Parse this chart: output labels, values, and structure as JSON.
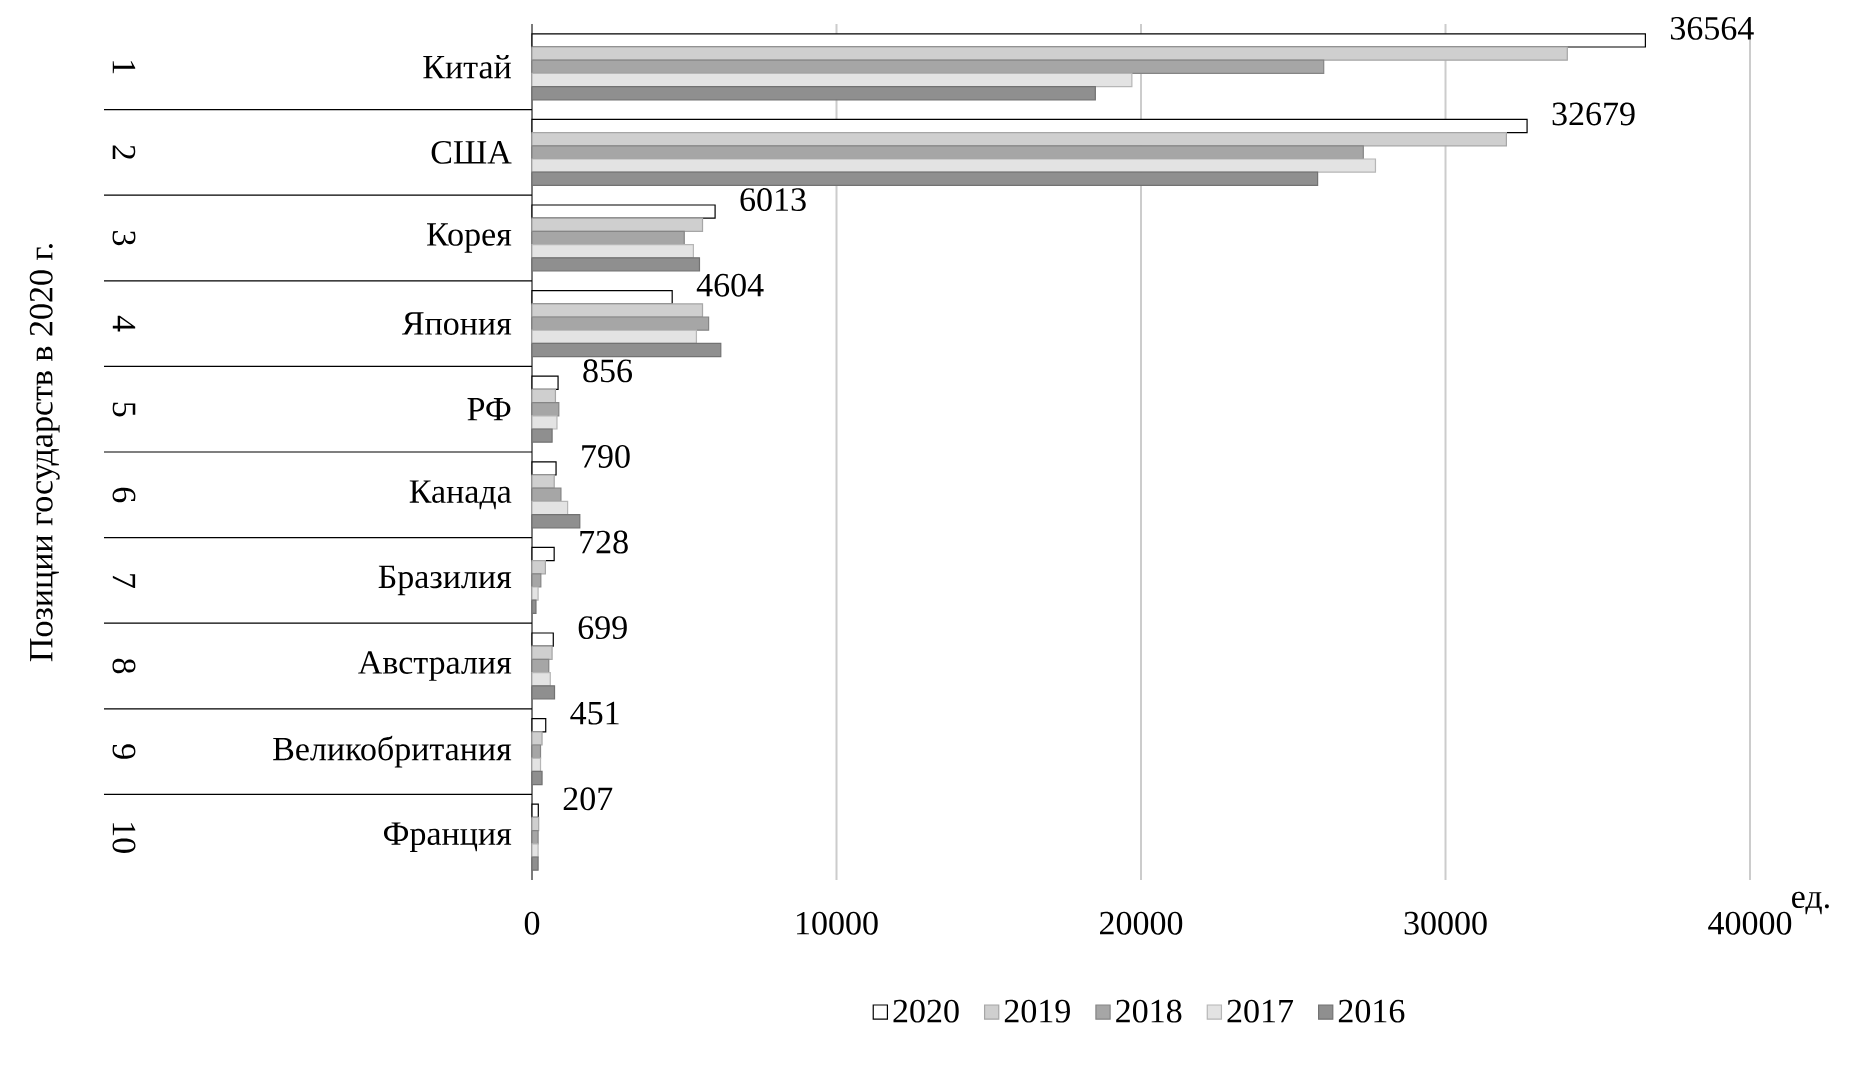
{
  "chart_data": {
    "type": "bar",
    "orientation": "horizontal",
    "xlabel": "ед.",
    "categories": [
      "Китай",
      "США",
      "Корея",
      "Япония",
      "РФ",
      "Канада",
      "Бразилия",
      "Австралия",
      "Великобритания",
      "Франция"
    ],
    "annotations": [
      "1",
      "2",
      "3",
      "4",
      "5",
      "6",
      "7",
      "8",
      "9",
      "10",
      "Позиции государств в 2020 г."
    ],
    "series": [
      {
        "name": "2020",
        "color": "#ffffff",
        "values": [
          36564,
          32679,
          6013,
          4604,
          856,
          790,
          728,
          699,
          451,
          207
        ],
        "value_labels": [
          "36564",
          "32679",
          "6013",
          "4604",
          "856",
          "790",
          "728",
          "699",
          "451",
          "207"
        ]
      },
      {
        "name": "2019",
        "color": "#cfcfcf",
        "values": [
          34000,
          32000,
          5600,
          5600,
          770,
          730,
          440,
          660,
          330,
          220
        ]
      },
      {
        "name": "2018",
        "color": "#a6a6a6",
        "values": [
          26000,
          27300,
          5000,
          5800,
          880,
          950,
          290,
          550,
          280,
          200
        ]
      },
      {
        "name": "2017",
        "color": "#e3e3e3",
        "values": [
          19700,
          27700,
          5300,
          5400,
          820,
          1170,
          200,
          600,
          280,
          200
        ]
      },
      {
        "name": "2016",
        "color": "#8f8f8f",
        "values": [
          18500,
          25800,
          5500,
          6200,
          660,
          1570,
          130,
          740,
          330,
          200
        ]
      }
    ],
    "xlim": [
      0,
      40000
    ],
    "xticks": [
      0,
      10000,
      20000,
      30000,
      40000
    ],
    "grid": "x",
    "legend": "bottom"
  }
}
